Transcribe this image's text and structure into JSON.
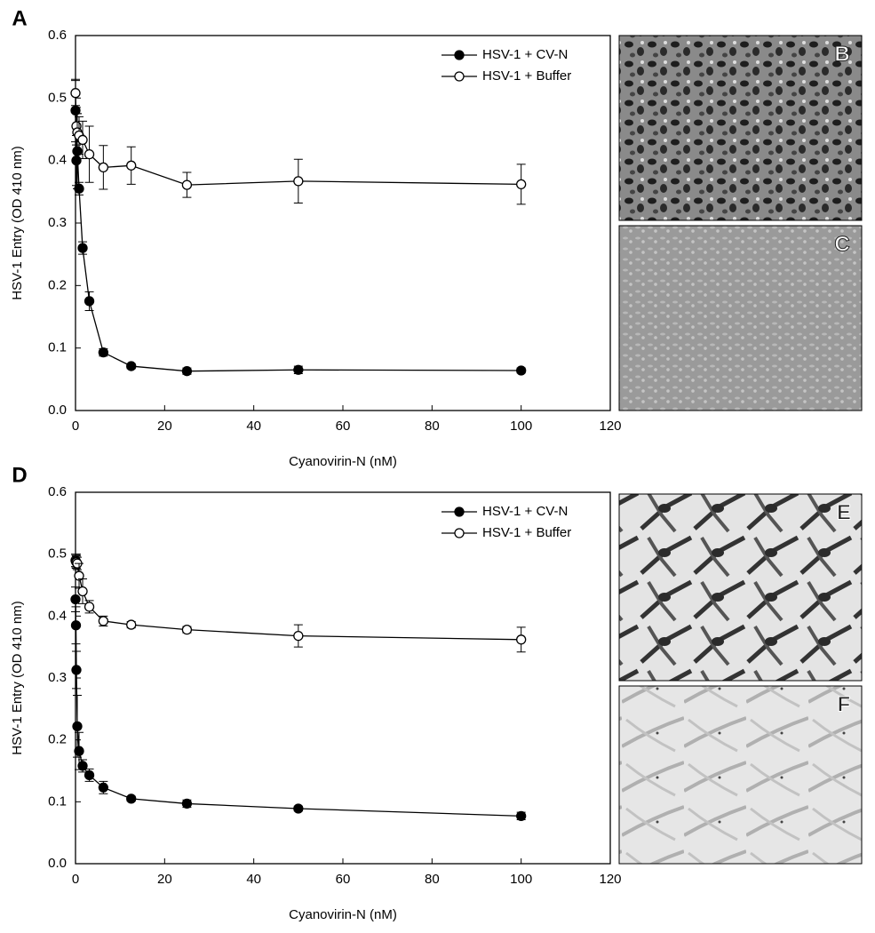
{
  "chart_data": [
    {
      "type": "line",
      "panel_label": "A",
      "x_label": "Cyanovirin-N (nM)",
      "y_label": "HSV-1 Entry (OD 410 nm)",
      "x": [
        0,
        0.2,
        0.4,
        0.8,
        1.6,
        3.1,
        6.25,
        12.5,
        25,
        50,
        100
      ],
      "series": [
        {
          "name": "HSV-1 + CV-N",
          "color": "#000000",
          "marker_fill": "#000000",
          "values": [
            0.48,
            0.4,
            0.415,
            0.355,
            0.26,
            0.175,
            0.093,
            0.071,
            0.063,
            0.065,
            0.064
          ],
          "errors": [
            0.05,
            0.04,
            0.06,
            0.01,
            0.01,
            0.015,
            0.006,
            0.004,
            0.005,
            0.006,
            0.004
          ]
        },
        {
          "name": "HSV-1 + Buffer",
          "color": "#000000",
          "marker_fill": "#ffffff",
          "values": [
            0.508,
            0.455,
            0.445,
            0.44,
            0.433,
            0.41,
            0.389,
            0.392,
            0.361,
            0.367,
            0.362
          ],
          "errors": [
            0.02,
            0.03,
            0.03,
            0.03,
            0.03,
            0.045,
            0.035,
            0.03,
            0.02,
            0.035,
            0.032
          ]
        }
      ],
      "xlim": [
        0,
        120
      ],
      "xticks": [
        0,
        20,
        40,
        60,
        80,
        100,
        120
      ],
      "ylim": [
        0,
        0.6
      ],
      "yticks": [
        {
          "value": 0,
          "label": "0.0"
        },
        0.1,
        0.2,
        0.3,
        0.4,
        0.5,
        0.6
      ],
      "legend": "upper right"
    },
    {
      "type": "line",
      "panel_label": "D",
      "x_label": "Cyanovirin-N (nM)",
      "y_label": "HSV-1 Entry (OD 410 nm)",
      "x": [
        0,
        0.1,
        0.2,
        0.4,
        0.8,
        1.6,
        3.1,
        6.25,
        12.5,
        25,
        50,
        100
      ],
      "series": [
        {
          "name": "HSV-1 + CV-N",
          "color": "#000000",
          "marker_fill": "#000000",
          "values": [
            0.427,
            0.385,
            0.313,
            0.222,
            0.182,
            0.158,
            0.143,
            0.123,
            0.105,
            0.097,
            0.089,
            0.077
          ],
          "errors": [
            0.02,
            0.03,
            0.03,
            0.05,
            0.03,
            0.01,
            0.01,
            0.01,
            0.004,
            0.006,
            0.004,
            0.006
          ]
        },
        {
          "name": "HSV-1 + Buffer",
          "color": "#000000",
          "marker_fill": "#ffffff",
          "values": [
            0.49,
            0.488,
            0.487,
            0.485,
            0.465,
            0.44,
            0.415,
            0.392,
            0.386,
            0.378,
            0.368,
            0.362
          ],
          "errors": [
            0.01,
            0.01,
            0.01,
            0.01,
            0.02,
            0.02,
            0.01,
            0.008,
            0.005,
            0.005,
            0.018,
            0.02
          ]
        }
      ],
      "xlim": [
        0,
        120
      ],
      "xticks": [
        0,
        20,
        40,
        60,
        80,
        100,
        120
      ],
      "ylim": [
        0,
        0.6
      ],
      "yticks": [
        {
          "value": 0,
          "label": "0.0"
        },
        0.1,
        0.2,
        0.3,
        0.4,
        0.5,
        0.6
      ],
      "legend": "upper right"
    }
  ],
  "images": [
    {
      "label": "B"
    },
    {
      "label": "C"
    },
    {
      "label": "E"
    },
    {
      "label": "F"
    }
  ]
}
